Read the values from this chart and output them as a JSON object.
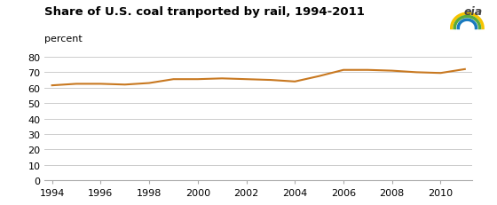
{
  "title": "Share of U.S. coal tranported by rail, 1994-2011",
  "ylabel": "percent",
  "line_color": "#c87820",
  "line_width": 1.5,
  "background_color": "#ffffff",
  "grid_color": "#cccccc",
  "years": [
    1994,
    1995,
    1996,
    1997,
    1998,
    1999,
    2000,
    2001,
    2002,
    2003,
    2004,
    2005,
    2006,
    2007,
    2008,
    2009,
    2010,
    2011
  ],
  "values": [
    61.5,
    62.5,
    62.5,
    62.0,
    63.0,
    65.5,
    65.5,
    66.0,
    65.5,
    65.0,
    64.0,
    67.5,
    71.5,
    71.5,
    71.0,
    70.0,
    69.5,
    72.0
  ],
  "xlim_min": 1993.7,
  "xlim_max": 2011.3,
  "ylim": [
    0,
    80
  ],
  "yticks": [
    0,
    10,
    20,
    30,
    40,
    50,
    60,
    70,
    80
  ],
  "xticks": [
    1994,
    1996,
    1998,
    2000,
    2002,
    2004,
    2006,
    2008,
    2010
  ],
  "title_fontsize": 9.5,
  "label_fontsize": 8,
  "tick_fontsize": 8,
  "tick_color": "#555555",
  "spine_color": "#aaaaaa"
}
